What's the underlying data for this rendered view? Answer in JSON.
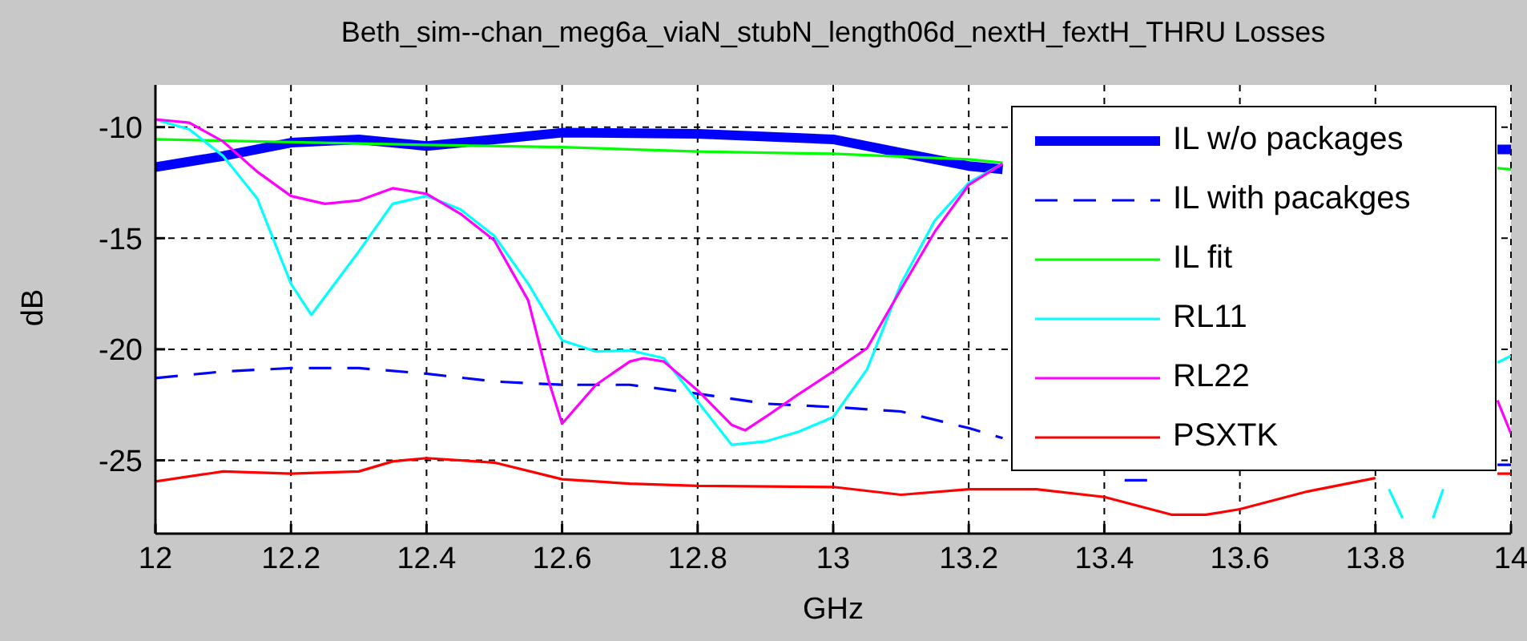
{
  "chart_data": {
    "type": "line",
    "title": "Beth_sim--chan_meg6a_viaN_stubN_length06d_nextH_fextH_THRU Losses",
    "xlabel": "GHz",
    "ylabel": "dB",
    "xlim": [
      12,
      14
    ],
    "xticks": [
      12,
      12.2,
      12.4,
      12.6,
      12.8,
      13,
      13.2,
      13.4,
      13.6,
      13.8,
      14
    ],
    "ylim": [
      -28.3,
      -8.1
    ],
    "yticks": [
      -25,
      -20,
      -15,
      -10
    ],
    "grid": true,
    "legend": "top right",
    "marker": "none",
    "series": [
      {
        "name": "IL w/o packages",
        "color": "#0000ff",
        "line_style": "solid",
        "x": [
          12,
          12.1,
          12.2,
          12.3,
          12.4,
          12.5,
          12.6,
          12.8,
          13,
          13.1,
          13.2,
          13.25,
          13.35,
          13.98,
          14
        ],
        "values": [
          -11.8,
          -11.3,
          -10.7,
          -10.55,
          -10.85,
          -10.55,
          -10.25,
          -10.3,
          -10.55,
          -11.15,
          -11.75,
          -11.9,
          null,
          -11,
          -11
        ]
      },
      {
        "name": "IL with pacakges",
        "color": "#0000ff",
        "line_style": "dashed",
        "x": [
          12,
          12.1,
          12.2,
          12.3,
          12.4,
          12.5,
          12.6,
          12.7,
          12.8,
          12.9,
          13,
          13.1,
          13.2,
          13.25,
          13.3,
          13.43,
          13.47,
          13.5,
          13.98,
          14
        ],
        "values": [
          -21.3,
          -21,
          -20.85,
          -20.85,
          -21.1,
          -21.45,
          -21.6,
          -21.6,
          -22,
          -22.45,
          -22.6,
          -22.8,
          -23.55,
          -24,
          null,
          -25.9,
          -25.9,
          null,
          -25.2,
          -25.2
        ]
      },
      {
        "name": "IL fit",
        "color": "#00ff00",
        "line_style": "solid",
        "x": [
          12,
          12.4,
          12.6,
          12.8,
          13,
          13.2,
          13.25,
          13.3,
          13.98,
          14
        ],
        "values": [
          -10.55,
          -10.8,
          -10.9,
          -11.1,
          -11.2,
          -11.45,
          -11.6,
          null,
          -11.85,
          -11.9
        ]
      },
      {
        "name": "RL11",
        "color": "#00ffff",
        "line_style": "solid",
        "x": [
          12,
          12.05,
          12.1,
          12.15,
          12.2,
          12.23,
          12.3,
          12.35,
          12.4,
          12.45,
          12.5,
          12.55,
          12.6,
          12.65,
          12.7,
          12.75,
          12.8,
          12.85,
          12.9,
          12.95,
          13,
          13.05,
          13.1,
          13.15,
          13.2,
          13.25,
          13.3,
          13.82,
          13.84,
          13.86,
          13.885,
          13.9,
          13.91,
          13.98,
          14
        ],
        "values": [
          -9.65,
          -10.1,
          -11.3,
          -13.2,
          -17.05,
          -18.45,
          -15.6,
          -13.45,
          -13.1,
          -13.7,
          -14.9,
          -17.05,
          -19.6,
          -20.1,
          -20.05,
          -20.4,
          -22.35,
          -24.3,
          -24.15,
          -23.7,
          -23.05,
          -20.9,
          -17.05,
          -14.2,
          -12.5,
          -11.65,
          null,
          -26.3,
          -27.6,
          null,
          -27.6,
          -26.3,
          null,
          -20.6,
          -20.3
        ]
      },
      {
        "name": "RL22",
        "color": "#ff00ff",
        "line_style": "solid",
        "x": [
          12,
          12.05,
          12.1,
          12.15,
          12.2,
          12.25,
          12.3,
          12.35,
          12.4,
          12.45,
          12.5,
          12.55,
          12.58,
          12.6,
          12.65,
          12.7,
          12.72,
          12.75,
          12.8,
          12.85,
          12.87,
          12.9,
          12.95,
          13,
          13.05,
          13.1,
          13.15,
          13.2,
          13.25,
          13.3,
          13.98,
          14
        ],
        "values": [
          -9.65,
          -9.8,
          -10.65,
          -12,
          -13.1,
          -13.45,
          -13.3,
          -12.75,
          -13,
          -13.9,
          -15.1,
          -17.8,
          -21.4,
          -23.35,
          -21.6,
          -20.55,
          -20.4,
          -20.55,
          -21.85,
          -23.4,
          -23.65,
          -23.05,
          -22,
          -21,
          -19.95,
          -17.3,
          -14.7,
          -12.6,
          -11.65,
          null,
          -22.3,
          -23.8
        ]
      },
      {
        "name": "PSXTK",
        "color": "#ff0000",
        "line_style": "solid",
        "x": [
          12,
          12.1,
          12.2,
          12.3,
          12.35,
          12.4,
          12.5,
          12.6,
          12.7,
          12.8,
          13,
          13.1,
          13.2,
          13.3,
          13.4,
          13.5,
          13.55,
          13.6,
          13.7,
          13.8,
          13.85,
          13.98,
          14
        ],
        "values": [
          -25.95,
          -25.5,
          -25.6,
          -25.5,
          -25.05,
          -24.9,
          -25.1,
          -25.85,
          -26.05,
          -26.15,
          -26.2,
          -26.55,
          -26.3,
          -26.3,
          -26.65,
          -27.45,
          -27.45,
          -27.2,
          -26.4,
          -25.8,
          null,
          -25.6,
          -25.6
        ]
      }
    ]
  }
}
